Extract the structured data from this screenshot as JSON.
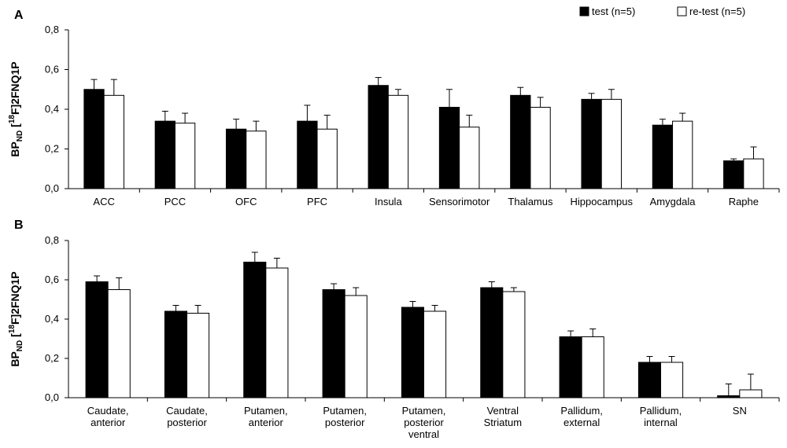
{
  "chart_data": [
    {
      "type": "bar",
      "panel_label": "A",
      "ylabel_parts": [
        "BP",
        "ND",
        " [",
        "18",
        "F]2FNQ1P"
      ],
      "ylim": [
        0,
        0.8
      ],
      "yticks": [
        "0,0",
        "0,2",
        "0,4",
        "0,6",
        "0,8"
      ],
      "legend": [
        "test (n=5)",
        "re-test (n=5)"
      ],
      "categories": [
        [
          "ACC"
        ],
        [
          "PCC"
        ],
        [
          "OFC"
        ],
        [
          "PFC"
        ],
        [
          "Insula"
        ],
        [
          "Sensorimotor"
        ],
        [
          "Thalamus"
        ],
        [
          "Hippocampus"
        ],
        [
          "Amygdala"
        ],
        [
          "Raphe"
        ]
      ],
      "series": [
        {
          "name": "test (n=5)",
          "color": "#000000",
          "values": [
            0.5,
            0.34,
            0.3,
            0.34,
            0.52,
            0.41,
            0.47,
            0.45,
            0.32,
            0.14
          ],
          "errors": [
            0.05,
            0.05,
            0.05,
            0.08,
            0.04,
            0.09,
            0.04,
            0.03,
            0.03,
            0.01
          ]
        },
        {
          "name": "re-test (n=5)",
          "color": "#ffffff",
          "values": [
            0.47,
            0.33,
            0.29,
            0.3,
            0.47,
            0.31,
            0.41,
            0.45,
            0.34,
            0.15
          ],
          "errors": [
            0.08,
            0.05,
            0.05,
            0.07,
            0.03,
            0.06,
            0.05,
            0.05,
            0.04,
            0.06
          ]
        }
      ]
    },
    {
      "type": "bar",
      "panel_label": "B",
      "ylabel_parts": [
        "BP",
        "ND",
        " [",
        "18",
        "F]2FNQ1P"
      ],
      "ylim": [
        0,
        0.8
      ],
      "yticks": [
        "0,0",
        "0,2",
        "0,4",
        "0,6",
        "0,8"
      ],
      "categories": [
        [
          "Caudate,",
          "anterior"
        ],
        [
          "Caudate,",
          "posterior"
        ],
        [
          "Putamen,",
          "anterior"
        ],
        [
          "Putamen,",
          "posterior"
        ],
        [
          "Putamen,",
          "posterior",
          "ventral"
        ],
        [
          "Ventral",
          "Striatum"
        ],
        [
          "Pallidum,",
          "external"
        ],
        [
          "Pallidum,",
          "internal"
        ],
        [
          "SN"
        ]
      ],
      "series": [
        {
          "name": "test (n=5)",
          "color": "#000000",
          "values": [
            0.59,
            0.44,
            0.69,
            0.55,
            0.46,
            0.56,
            0.31,
            0.18,
            0.01
          ],
          "errors": [
            0.03,
            0.03,
            0.05,
            0.03,
            0.03,
            0.03,
            0.03,
            0.03,
            0.06
          ]
        },
        {
          "name": "re-test (n=5)",
          "color": "#ffffff",
          "values": [
            0.55,
            0.43,
            0.66,
            0.52,
            0.44,
            0.54,
            0.31,
            0.18,
            0.04
          ],
          "errors": [
            0.06,
            0.04,
            0.05,
            0.04,
            0.03,
            0.02,
            0.04,
            0.03,
            0.08
          ]
        }
      ]
    }
  ]
}
